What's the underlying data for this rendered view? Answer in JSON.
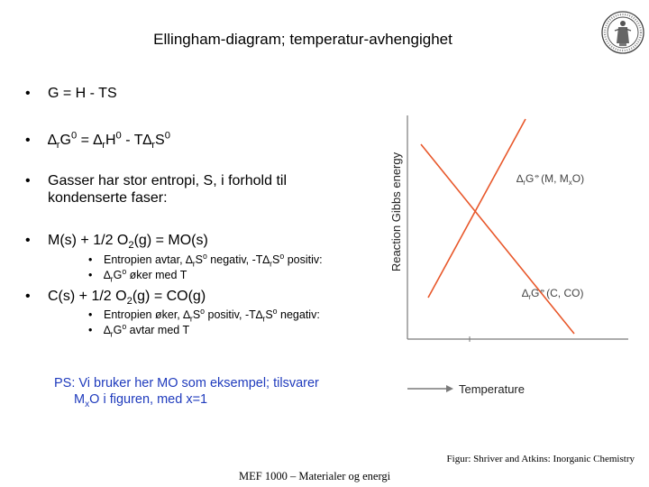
{
  "title": "Ellingham-diagram; temperatur-avhengighet",
  "seal": {
    "icon": "university-seal-icon"
  },
  "bullets": [
    {
      "marker": "•",
      "text": "G = H - TS"
    },
    {
      "marker": "•",
      "parts": [
        "∆",
        "r",
        "G",
        "0",
        " = ∆",
        "r",
        "H",
        "0",
        " - T∆",
        "r",
        "S",
        "0"
      ]
    },
    {
      "marker": "•",
      "line1": "Gasser har stor entropi, S, i forhold til",
      "line2": "kondenserte faser:"
    },
    {
      "marker": "•",
      "parts": [
        "M(s) + 1/2 O",
        "2",
        "(g) = MO(s)"
      ],
      "sub": [
        {
          "marker": "•",
          "parts": [
            "Entropien avtar, ∆",
            "r",
            "S",
            "o",
            " negativ, -T∆",
            "r",
            "S",
            "o",
            " positiv:"
          ]
        },
        {
          "marker": "•",
          "parts": [
            "∆",
            "r",
            "G",
            "o",
            " øker med T"
          ]
        }
      ]
    },
    {
      "marker": "•",
      "parts": [
        "C(s) + 1/2 O",
        "2",
        "(g) = CO(g)"
      ],
      "sub": [
        {
          "marker": "•",
          "parts": [
            "Entropien øker, ∆",
            "r",
            "S",
            "o",
            " positiv, -T∆",
            "r",
            "S",
            "o",
            " negativ:"
          ]
        },
        {
          "marker": "•",
          "parts": [
            "∆",
            "r",
            "G",
            "o",
            " avtar med T"
          ]
        }
      ]
    }
  ],
  "ps": {
    "line1": "PS: Vi bruker her MO som eksempel; tilsvarer",
    "line2_parts": [
      "M",
      "x",
      "O i figuren, med x=1"
    ]
  },
  "diagram": {
    "y_axis_label": "Reaction Gibbs energy",
    "x_axis_label": "Temperature",
    "label_M_parts": [
      "∆",
      "r",
      "G",
      "⦵",
      "(M, M",
      "x",
      "O)"
    ],
    "label_C_parts": [
      "∆",
      "r",
      "G",
      "⦵",
      "(C, CO)"
    ],
    "line_color": "#e8572a",
    "axis_color": "#7a7a7a"
  },
  "credit": "Figur: Shriver and Atkins: Inorganic Chemistry",
  "footer": "MEF 1000 – Materialer og energi"
}
